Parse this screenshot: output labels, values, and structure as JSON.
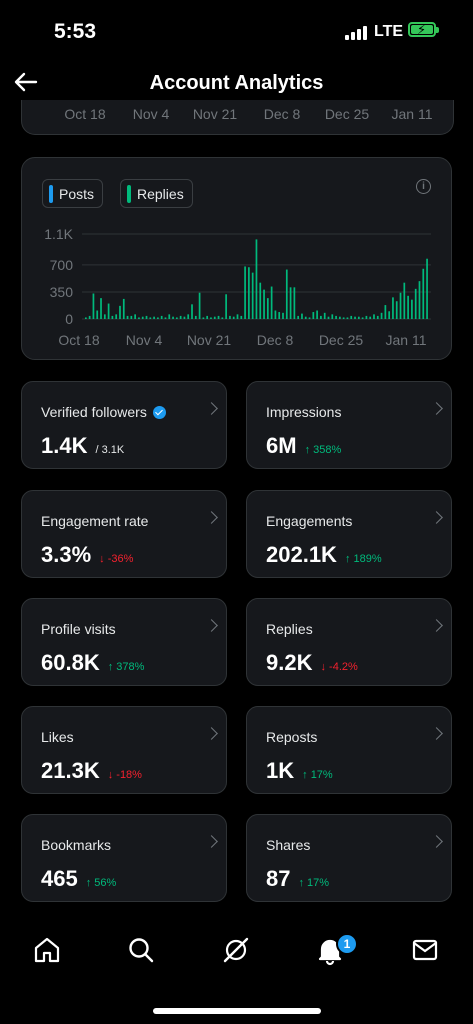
{
  "status": {
    "time": "5:53",
    "network": "LTE"
  },
  "header": {
    "title": "Account Analytics"
  },
  "top_axis_labels": [
    "Oct 18",
    "Nov 4",
    "Nov 21",
    "Dec 8",
    "Dec 25",
    "Jan 11"
  ],
  "legend": [
    {
      "label": "Posts",
      "color": "#1d9bf0"
    },
    {
      "label": "Replies",
      "color": "#00ba7c"
    }
  ],
  "chart_data": {
    "type": "bar",
    "yticks": [
      "1.1K",
      "700",
      "350",
      "0"
    ],
    "ylim": [
      0,
      1100
    ],
    "xticks": [
      "Oct 18",
      "Nov 4",
      "Nov 21",
      "Dec 8",
      "Dec 25",
      "Jan 11"
    ],
    "series": [
      {
        "name": "Replies",
        "color": "#00ba7c",
        "values": [
          20,
          40,
          330,
          110,
          270,
          60,
          200,
          40,
          60,
          170,
          260,
          40,
          40,
          60,
          20,
          30,
          40,
          20,
          30,
          20,
          40,
          20,
          60,
          30,
          20,
          40,
          30,
          60,
          190,
          40,
          340,
          20,
          40,
          20,
          30,
          40,
          20,
          320,
          40,
          30,
          60,
          40,
          680,
          670,
          600,
          1030,
          470,
          380,
          270,
          420,
          110,
          90,
          80,
          640,
          410,
          410,
          40,
          70,
          30,
          20,
          90,
          110,
          40,
          80,
          30,
          60,
          40,
          30,
          20,
          20,
          40,
          30,
          30,
          20,
          40,
          30,
          60,
          40,
          80,
          180,
          100,
          280,
          230,
          340,
          470,
          300,
          250,
          390,
          490,
          650,
          780
        ]
      }
    ]
  },
  "metrics": [
    {
      "label": "Verified followers",
      "value": "1.4K",
      "sub": "/ 3.1K",
      "verified": true
    },
    {
      "label": "Impressions",
      "value": "6M",
      "change": "358%",
      "dir": "up"
    },
    {
      "label": "Engagement rate",
      "value": "3.3%",
      "change": "-36%",
      "dir": "down"
    },
    {
      "label": "Engagements",
      "value": "202.1K",
      "change": "189%",
      "dir": "up"
    },
    {
      "label": "Profile visits",
      "value": "60.8K",
      "change": "378%",
      "dir": "up"
    },
    {
      "label": "Replies",
      "value": "9.2K",
      "change": "-4.2%",
      "dir": "down"
    },
    {
      "label": "Likes",
      "value": "21.3K",
      "change": "-18%",
      "dir": "down"
    },
    {
      "label": "Reposts",
      "value": "1K",
      "change": "17%",
      "dir": "up"
    },
    {
      "label": "Bookmarks",
      "value": "465",
      "change": "56%",
      "dir": "up"
    },
    {
      "label": "Shares",
      "value": "87",
      "change": "17%",
      "dir": "up"
    }
  ],
  "tabbar": {
    "icons": [
      "home-icon",
      "search-icon",
      "grok-icon",
      "notifications-icon",
      "messages-icon"
    ],
    "notification_count": "1"
  }
}
